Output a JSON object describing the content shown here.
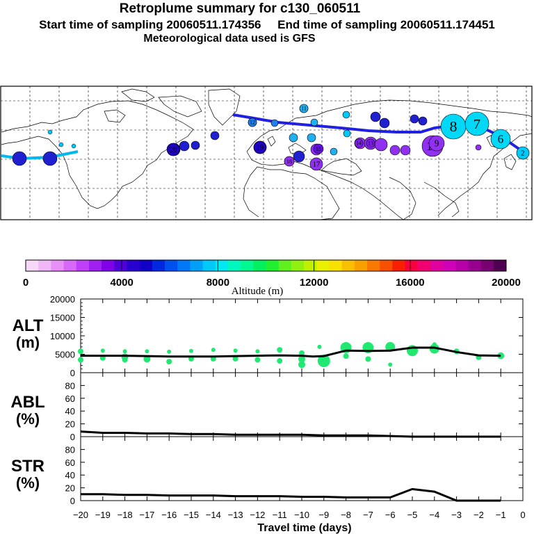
{
  "header": {
    "title": "Retroplume summary for c130_060511",
    "sampling": "Start time of sampling 20060511.174356     End time of sampling 20060511.174451",
    "met": "Meteorological data used is GFS"
  },
  "colorbar": {
    "label": "Altitude (m)",
    "ticks": [
      "0",
      "4000",
      "8000",
      "12000",
      "16000",
      "20000"
    ],
    "range": [
      0,
      20000
    ],
    "colors": [
      "#f8d8f8",
      "#f0b8f8",
      "#e890f8",
      "#d868f8",
      "#c040f8",
      "#a020f0",
      "#8000e8",
      "#5000d8",
      "#2800d0",
      "#1000c8",
      "#0028e0",
      "#0050f0",
      "#0078f8",
      "#00a0f8",
      "#00c8f8",
      "#00e8f0",
      "#00f8c0",
      "#00f890",
      "#00f060",
      "#20f030",
      "#60f020",
      "#90f010",
      "#c0f000",
      "#e8f000",
      "#f8e000",
      "#f8c000",
      "#f8a000",
      "#f87800",
      "#f85000",
      "#f82000",
      "#f80040",
      "#f00070",
      "#e000a0",
      "#d000b8",
      "#b800a8",
      "#980090",
      "#780070",
      "#500050"
    ]
  },
  "map": {
    "markers": [
      {
        "label": "8",
        "color": "#00d8f8",
        "size": 18
      },
      {
        "label": "7",
        "color": "#00d8f8",
        "size": 17
      },
      {
        "label": "6",
        "color": "#00d8f8",
        "size": 14
      },
      {
        "label": "10",
        "color": "#9030f0",
        "size": 15
      },
      {
        "label": "9",
        "color": "#9030f0",
        "size": 11
      },
      {
        "label": "2",
        "color": "#00c8f8",
        "size": 9
      },
      {
        "label": "11",
        "color": "#20b0f0",
        "size": 6
      },
      {
        "label": "12",
        "color": "#2080f0",
        "size": 6
      },
      {
        "label": "15",
        "color": "#6010e0",
        "size": 7
      },
      {
        "label": "14",
        "color": "#8020f0",
        "size": 6
      },
      {
        "label": "13",
        "color": "#8020f0",
        "size": 6
      },
      {
        "label": "19",
        "color": "#2000c0",
        "size": 9
      },
      {
        "label": "20",
        "color": "#2000c0",
        "size": 9
      },
      {
        "label": "17",
        "color": "#9030f0",
        "size": 9
      },
      {
        "label": "18",
        "color": "#9030f0",
        "size": 7
      }
    ]
  },
  "chart_data": [
    {
      "type": "scatter",
      "panel": "ALT",
      "title_line1": "ALT",
      "title_line2": "(m)",
      "xlabel": "Travel time (days)",
      "xlim": [
        -20,
        0
      ],
      "ylim": [
        0,
        20000
      ],
      "yticks": [
        "20000",
        "15000",
        "10000",
        "5000",
        "0"
      ],
      "xticks": [
        "−20",
        "−19",
        "−18",
        "−17",
        "−16",
        "−15",
        "−14",
        "−13",
        "−12",
        "−11",
        "−10",
        "−9",
        "−8",
        "−7",
        "−6",
        "−5",
        "−4",
        "−3",
        "−2",
        "−1",
        "0"
      ],
      "mean_line": {
        "x": [
          -20,
          -19,
          -18,
          -17,
          -16,
          -15,
          -14,
          -13,
          -12,
          -11,
          -10,
          -9.5,
          -9,
          -8,
          -7,
          -6,
          -5,
          -4,
          -3,
          -2,
          -1
        ],
        "y": [
          4600,
          4600,
          4600,
          4500,
          4400,
          4400,
          4400,
          4500,
          4600,
          4700,
          4600,
          4400,
          4500,
          6000,
          5900,
          6000,
          6800,
          6800,
          5600,
          4700,
          4600
        ]
      },
      "points": [
        {
          "x": -20,
          "y": 5800,
          "s": 4
        },
        {
          "x": -20,
          "y": 3500,
          "s": 4
        },
        {
          "x": -19,
          "y": 6000,
          "s": 3
        },
        {
          "x": -19,
          "y": 4000,
          "s": 4
        },
        {
          "x": -18,
          "y": 5800,
          "s": 3
        },
        {
          "x": -18,
          "y": 4300,
          "s": 5
        },
        {
          "x": -18,
          "y": 3500,
          "s": 4
        },
        {
          "x": -17,
          "y": 5800,
          "s": 3
        },
        {
          "x": -17,
          "y": 3700,
          "s": 5
        },
        {
          "x": -16,
          "y": 5700,
          "s": 3
        },
        {
          "x": -16,
          "y": 3000,
          "s": 4
        },
        {
          "x": -15,
          "y": 5900,
          "s": 3
        },
        {
          "x": -15,
          "y": 3800,
          "s": 4
        },
        {
          "x": -14,
          "y": 6200,
          "s": 3
        },
        {
          "x": -14,
          "y": 3800,
          "s": 4
        },
        {
          "x": -13,
          "y": 6000,
          "s": 3
        },
        {
          "x": -13,
          "y": 3800,
          "s": 4
        },
        {
          "x": -12,
          "y": 5800,
          "s": 3
        },
        {
          "x": -12,
          "y": 3500,
          "s": 4
        },
        {
          "x": -11,
          "y": 6200,
          "s": 4
        },
        {
          "x": -11,
          "y": 3200,
          "s": 4
        },
        {
          "x": -10,
          "y": 5300,
          "s": 4
        },
        {
          "x": -10,
          "y": 3700,
          "s": 5
        },
        {
          "x": -10,
          "y": 2200,
          "s": 5
        },
        {
          "x": -9.2,
          "y": 7000,
          "s": 3
        },
        {
          "x": -9,
          "y": 3200,
          "s": 9
        },
        {
          "x": -8,
          "y": 6800,
          "s": 8
        },
        {
          "x": -8,
          "y": 4500,
          "s": 4
        },
        {
          "x": -7,
          "y": 6800,
          "s": 8
        },
        {
          "x": -7,
          "y": 3700,
          "s": 4
        },
        {
          "x": -6,
          "y": 7000,
          "s": 7
        },
        {
          "x": -6,
          "y": 2200,
          "s": 3
        },
        {
          "x": -5,
          "y": 6000,
          "s": 8
        },
        {
          "x": -4,
          "y": 6500,
          "s": 7
        },
        {
          "x": -4,
          "y": 7700,
          "s": 3
        },
        {
          "x": -3,
          "y": 5800,
          "s": 4
        },
        {
          "x": -2,
          "y": 4200,
          "s": 4
        },
        {
          "x": -1,
          "y": 4600,
          "s": 5
        }
      ]
    },
    {
      "type": "line",
      "panel": "ABL",
      "title_line1": "ABL",
      "title_line2": "(%)",
      "xlim": [
        -20,
        0
      ],
      "ylim": [
        0,
        100
      ],
      "yticks": [
        "80",
        "60",
        "40",
        "20",
        "0"
      ],
      "x": [
        -20,
        -19,
        -18,
        -17,
        -16,
        -15,
        -14,
        -13,
        -12,
        -11,
        -10,
        -9,
        -8,
        -7,
        -6,
        -5,
        -4,
        -3,
        -2,
        -1
      ],
      "y": [
        8,
        6,
        6,
        5,
        5,
        4,
        4,
        3,
        3,
        3,
        3,
        2,
        2,
        2,
        1,
        0,
        0,
        0,
        0,
        0
      ]
    },
    {
      "type": "line",
      "panel": "STR",
      "title_line1": "STR",
      "title_line2": "(%)",
      "xlim": [
        -20,
        0
      ],
      "ylim": [
        0,
        100
      ],
      "yticks": [
        "80",
        "60",
        "40",
        "20",
        "0"
      ],
      "x": [
        -20,
        -19,
        -18,
        -17,
        -16,
        -15,
        -14,
        -13,
        -12,
        -11,
        -10,
        -9,
        -8,
        -7,
        -6,
        -5,
        -4,
        -3,
        -2,
        -1
      ],
      "y": [
        10,
        10,
        9,
        9,
        8,
        8,
        8,
        7,
        7,
        7,
        6,
        6,
        5,
        5,
        5,
        18,
        14,
        0,
        0,
        0
      ]
    }
  ]
}
